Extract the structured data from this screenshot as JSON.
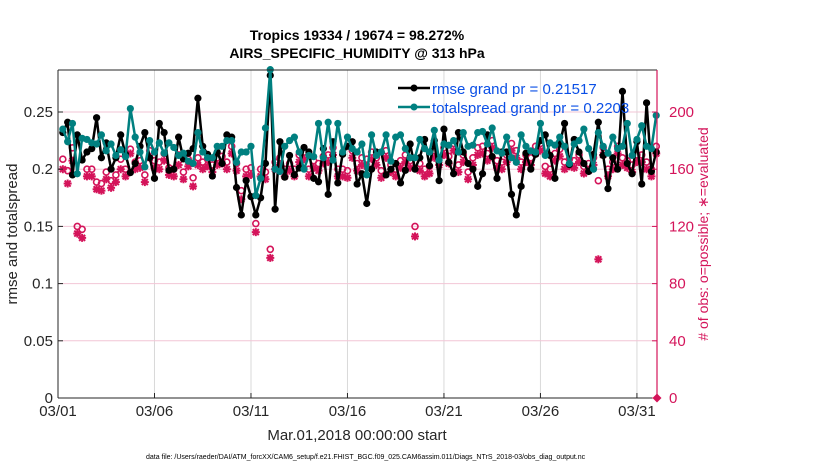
{
  "chart_data": {
    "type": "line",
    "title": [
      "Tropics 19334 / 19674 = 98.272%",
      "AIRS_SPECIFIC_HUMIDITY @ 313 hPa"
    ],
    "xlabel": "Mar.01,2018 00:00:00 start",
    "ylabel": "rmse and totalspread",
    "y2label": "# of obs: o=possible; ∗=evaluated",
    "footnote": "data file: /Users/raeder/DAI/ATM_forcXX/CAM6_setup/f.e21.FHIST_BGC.f09_025.CAM6assim.011/Diags_NTrS_2018-03/obs_diag_output.nc",
    "x_unit": "days since 03/01 00:00",
    "xlim": [
      0,
      31.04
    ],
    "ylim": [
      0,
      0.2867
    ],
    "y2lim": [
      0,
      229.4
    ],
    "xticks": [
      0,
      5,
      10,
      15,
      20,
      25,
      30
    ],
    "xtick_labels": [
      "03/01",
      "03/06",
      "03/11",
      "03/16",
      "03/21",
      "03/26",
      "03/31"
    ],
    "yticks": [
      0,
      0.05,
      0.1,
      0.15,
      0.2,
      0.25
    ],
    "ytick_labels": [
      "0",
      "0.05",
      "0.1",
      "0.15",
      "0.2",
      "0.25"
    ],
    "y2ticks": [
      0,
      40,
      80,
      120,
      160,
      200
    ],
    "y2tick_labels": [
      "0",
      "40",
      "80",
      "120",
      "160",
      "200"
    ],
    "grid": true,
    "legend": {
      "placement": "top-right",
      "entries": [
        "rmse grand pr = 0.21517",
        "totalspread grand pr = 0.2203"
      ]
    },
    "colors": {
      "rmse": "#000000",
      "totalspread": "#008080",
      "obs": "#d4145a",
      "legend_text": "#0a4fe6",
      "grid_vertical": "#d9d9d9",
      "grid_horizontal": "#f2c6d6"
    },
    "x_step_days": 0.25,
    "x_start": 0.25,
    "series": [
      {
        "name": "rmse",
        "axis": "left",
        "marker": "filled-circle",
        "values": [
          0.232,
          0.241,
          0.195,
          0.23,
          0.208,
          0.215,
          0.218,
          0.245,
          0.21,
          0.223,
          0.2,
          0.21,
          0.23,
          0.213,
          0.197,
          0.205,
          0.22,
          0.232,
          0.21,
          0.192,
          0.24,
          0.232,
          0.199,
          0.2,
          0.228,
          0.209,
          0.214,
          0.218,
          0.262,
          0.22,
          0.213,
          0.194,
          0.215,
          0.205,
          0.23,
          0.228,
          0.184,
          0.16,
          0.19,
          0.176,
          0.16,
          0.175,
          0.205,
          0.282,
          0.165,
          0.224,
          0.193,
          0.212,
          0.195,
          0.201,
          0.219,
          0.215,
          0.192,
          0.189,
          0.218,
          0.178,
          0.224,
          0.188,
          0.213,
          0.22,
          0.224,
          0.187,
          0.196,
          0.17,
          0.2,
          0.215,
          0.215,
          0.195,
          0.2,
          0.205,
          0.188,
          0.199,
          0.222,
          0.2,
          0.21,
          0.226,
          0.203,
          0.225,
          0.19,
          0.235,
          0.206,
          0.196,
          0.232,
          0.215,
          0.205,
          0.2,
          0.185,
          0.196,
          0.23,
          0.211,
          0.192,
          0.215,
          0.215,
          0.178,
          0.16,
          0.185,
          0.214,
          0.2,
          0.213,
          0.225,
          0.23,
          0.212,
          0.192,
          0.222,
          0.24,
          0.204,
          0.226,
          0.215,
          0.205,
          0.198,
          0.213,
          0.241,
          0.212,
          0.183,
          0.21,
          0.2,
          0.268,
          0.205,
          0.196,
          0.224,
          0.187,
          0.258,
          0.198,
          0.215
        ]
      },
      {
        "name": "totalspread",
        "axis": "left",
        "marker": "filled-circle",
        "values": [
          0.235,
          0.224,
          0.24,
          0.196,
          0.227,
          0.226,
          0.223,
          0.222,
          0.23,
          0.216,
          0.222,
          0.212,
          0.217,
          0.211,
          0.253,
          0.228,
          0.215,
          0.202,
          0.225,
          0.215,
          0.223,
          0.214,
          0.223,
          0.219,
          0.212,
          0.214,
          0.207,
          0.205,
          0.232,
          0.215,
          0.21,
          0.21,
          0.22,
          0.22,
          0.225,
          0.225,
          0.206,
          0.215,
          0.215,
          0.22,
          0.177,
          0.192,
          0.236,
          0.287,
          0.2,
          0.198,
          0.22,
          0.225,
          0.228,
          0.215,
          0.2,
          0.212,
          0.211,
          0.24,
          0.21,
          0.241,
          0.208,
          0.24,
          0.215,
          0.228,
          0.218,
          0.215,
          0.222,
          0.195,
          0.23,
          0.212,
          0.215,
          0.23,
          0.207,
          0.228,
          0.23,
          0.218,
          0.21,
          0.21,
          0.226,
          0.218,
          0.215,
          0.234,
          0.208,
          0.222,
          0.221,
          0.225,
          0.215,
          0.232,
          0.22,
          0.221,
          0.232,
          0.233,
          0.222,
          0.236,
          0.216,
          0.214,
          0.228,
          0.21,
          0.206,
          0.23,
          0.22,
          0.216,
          0.215,
          0.24,
          0.212,
          0.223,
          0.221,
          0.228,
          0.22,
          0.205,
          0.222,
          0.225,
          0.235,
          0.218,
          0.2,
          0.232,
          0.22,
          0.214,
          0.228,
          0.218,
          0.22,
          0.24,
          0.212,
          0.226,
          0.238,
          0.22,
          0.218,
          0.247
        ]
      },
      {
        "name": "obs_possible",
        "axis": "right",
        "marker": "open-circle",
        "values": [
          167,
          159,
          175,
          120,
          118,
          160,
          160,
          151,
          150,
          158,
          152,
          156,
          167,
          160,
          174,
          165,
          166,
          156,
          173,
          166,
          165,
          171,
          161,
          160,
          170,
          158,
          167,
          154,
          168,
          165,
          167,
          163,
          168,
          169,
          165,
          176,
          164,
          145,
          160,
          161,
          122,
          160,
          158,
          104,
          165,
          168,
          160,
          164,
          160,
          170,
          172,
          160,
          166,
          164,
          169,
          170,
          175,
          160,
          160,
          159,
          173,
          164,
          168,
          167,
          172,
          168,
          159,
          173,
          163,
          160,
          166,
          170,
          166,
          120,
          164,
          160,
          162,
          173,
          168,
          175,
          169,
          178,
          163,
          170,
          158,
          168,
          175,
          176,
          171,
          180,
          166,
          165,
          170,
          178,
          173,
          165,
          170,
          168,
          176,
          178,
          162,
          160,
          171,
          174,
          165,
          167,
          166,
          170,
          162,
          164,
          168,
          152,
          175,
          160,
          165,
          176,
          168,
          166,
          163,
          170,
          170,
          165,
          160,
          176
        ]
      },
      {
        "name": "obs_evaluated",
        "axis": "right",
        "marker": "asterisk",
        "values": [
          160,
          150,
          166,
          115,
          112,
          155,
          155,
          146,
          145,
          153,
          147,
          151,
          160,
          155,
          171,
          160,
          161,
          151,
          168,
          161,
          160,
          166,
          156,
          155,
          163,
          153,
          162,
          148,
          163,
          160,
          162,
          158,
          163,
          164,
          160,
          171,
          159,
          139,
          155,
          156,
          116,
          155,
          153,
          98,
          160,
          163,
          155,
          159,
          155,
          165,
          167,
          155,
          161,
          159,
          164,
          165,
          170,
          155,
          155,
          154,
          168,
          159,
          163,
          162,
          167,
          163,
          154,
          168,
          158,
          155,
          161,
          165,
          161,
          113,
          159,
          155,
          157,
          168,
          163,
          170,
          164,
          173,
          158,
          165,
          153,
          163,
          170,
          171,
          166,
          175,
          161,
          160,
          165,
          173,
          168,
          160,
          165,
          163,
          171,
          173,
          157,
          155,
          166,
          169,
          160,
          162,
          161,
          165,
          157,
          159,
          163,
          97,
          170,
          155,
          160,
          171,
          163,
          161,
          158,
          165,
          165,
          160,
          155,
          171
        ]
      },
      {
        "name": "obs_zero_marker",
        "axis": "right",
        "marker": "filled-diamond",
        "x": [
          31.04
        ],
        "values": [
          0
        ]
      }
    ]
  }
}
